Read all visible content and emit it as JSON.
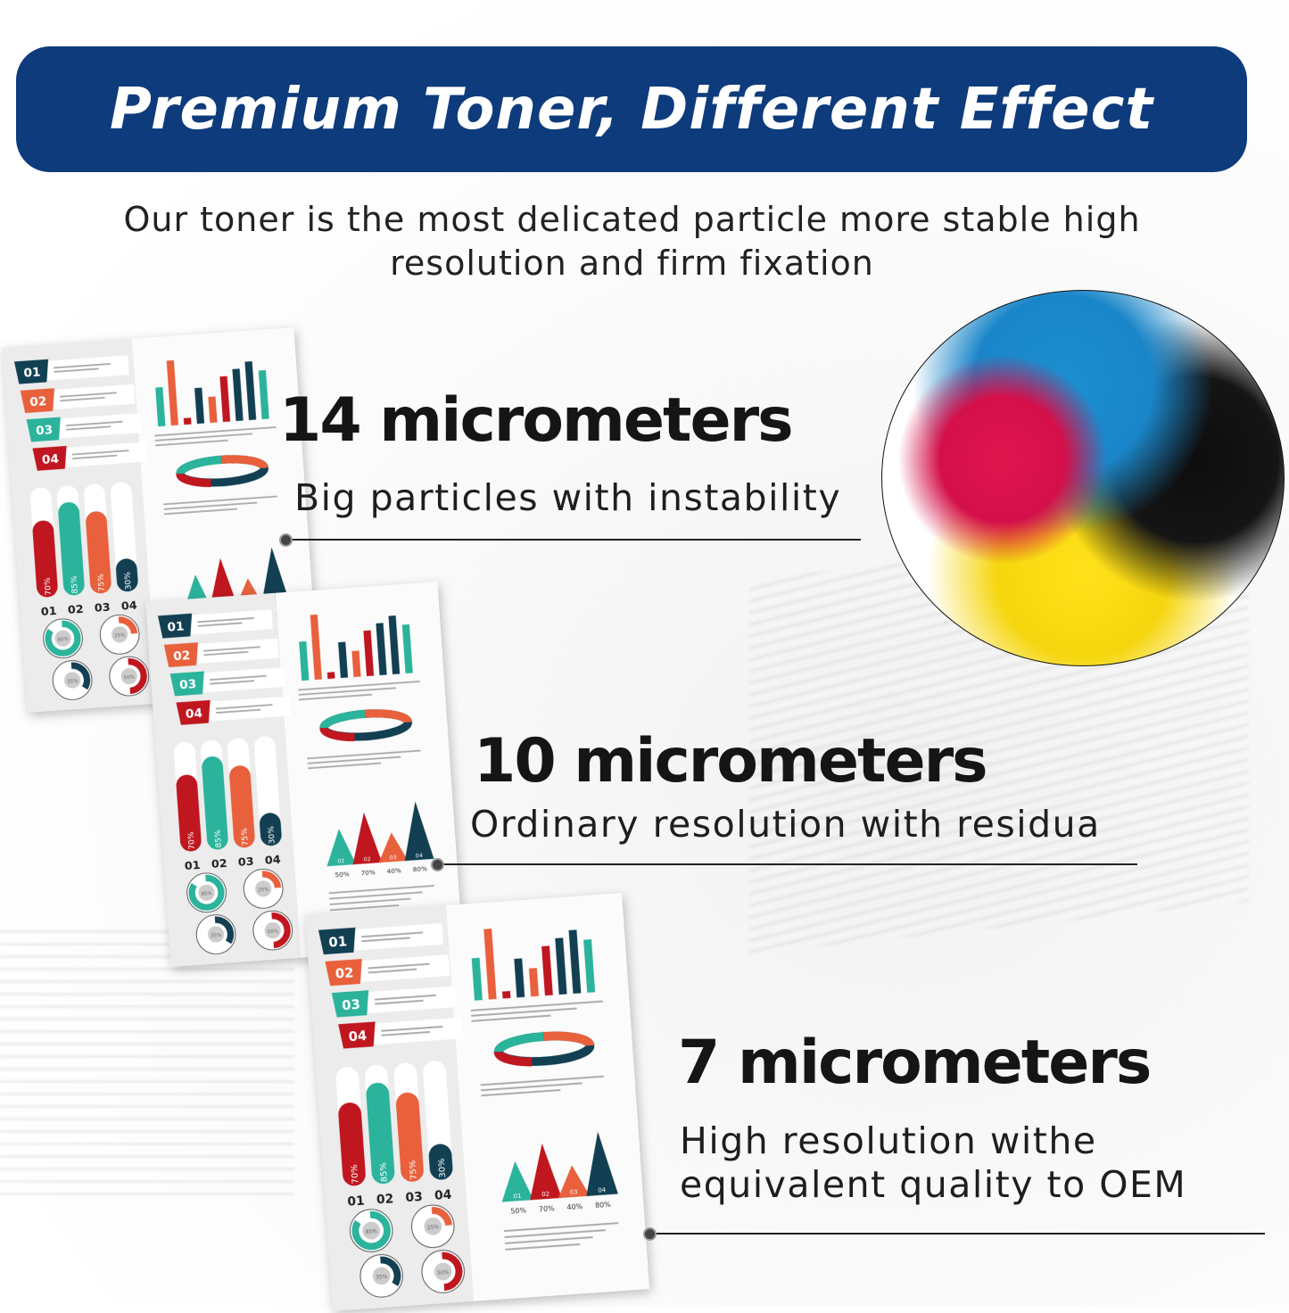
{
  "header": {
    "title": "Premium Toner, Different Effect"
  },
  "subtitle": [
    "Our toner is the most delicated particle more stable high",
    "resolution and firm fixation"
  ],
  "levels": [
    {
      "heading": "14 micrometers",
      "lines": [
        "Big particles with instability"
      ]
    },
    {
      "heading": "10 micrometers",
      "lines": [
        "Ordinary resolution with residua"
      ]
    },
    {
      "heading": "7 micrometers",
      "lines": [
        "High resolution withe",
        "equivalent quality to OEM"
      ]
    }
  ],
  "infographic": {
    "badges": [
      "01",
      "02",
      "03",
      "04"
    ],
    "bar_percents": [
      "70%",
      "85%",
      "75%",
      "30%"
    ],
    "bar_values": [
      70,
      85,
      75,
      30
    ],
    "bar_labels": [
      "01",
      "02",
      "03",
      "04"
    ],
    "ring_percents": [
      "85%",
      "25%",
      "35%",
      "50%"
    ],
    "ring_values": [
      85,
      25,
      35,
      50
    ],
    "triangle_labels": [
      "01",
      "02",
      "03",
      "04"
    ],
    "triangle_percents": [
      "50%",
      "70%",
      "40%",
      "80%"
    ],
    "triangle_values": [
      50,
      70,
      40,
      80
    ]
  },
  "colors": {
    "banner": "#0e3b7c",
    "navy": "#123f52",
    "orange": "#e8603c",
    "teal": "#2bb39b",
    "red": "#c0161f",
    "cyan_toner": "#1a86c9",
    "magenta_toner": "#d4104a",
    "yellow_toner": "#f5d60e",
    "black_toner": "#151515"
  }
}
